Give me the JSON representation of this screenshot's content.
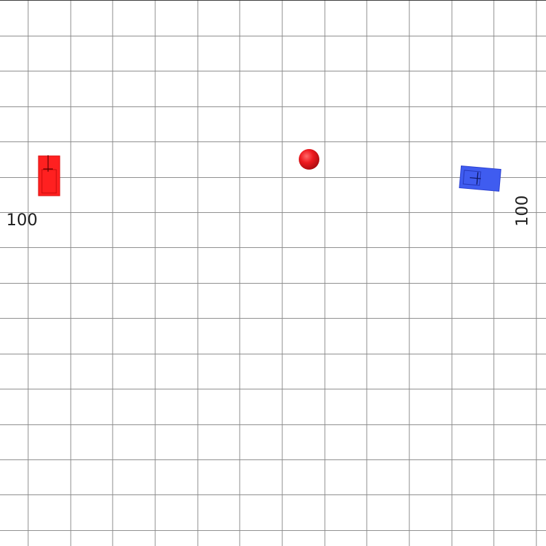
{
  "scores": {
    "left": "100",
    "right": "100"
  },
  "colors": {
    "background": "#ffffff",
    "grid_line": "#8a8a8a",
    "red_team": "#ff2020",
    "blue_team": "#3f5cf0",
    "ball": "#e8141c"
  },
  "entities": {
    "red_car": "red-tank",
    "blue_car": "blue-tank",
    "ball": "red-ball"
  }
}
